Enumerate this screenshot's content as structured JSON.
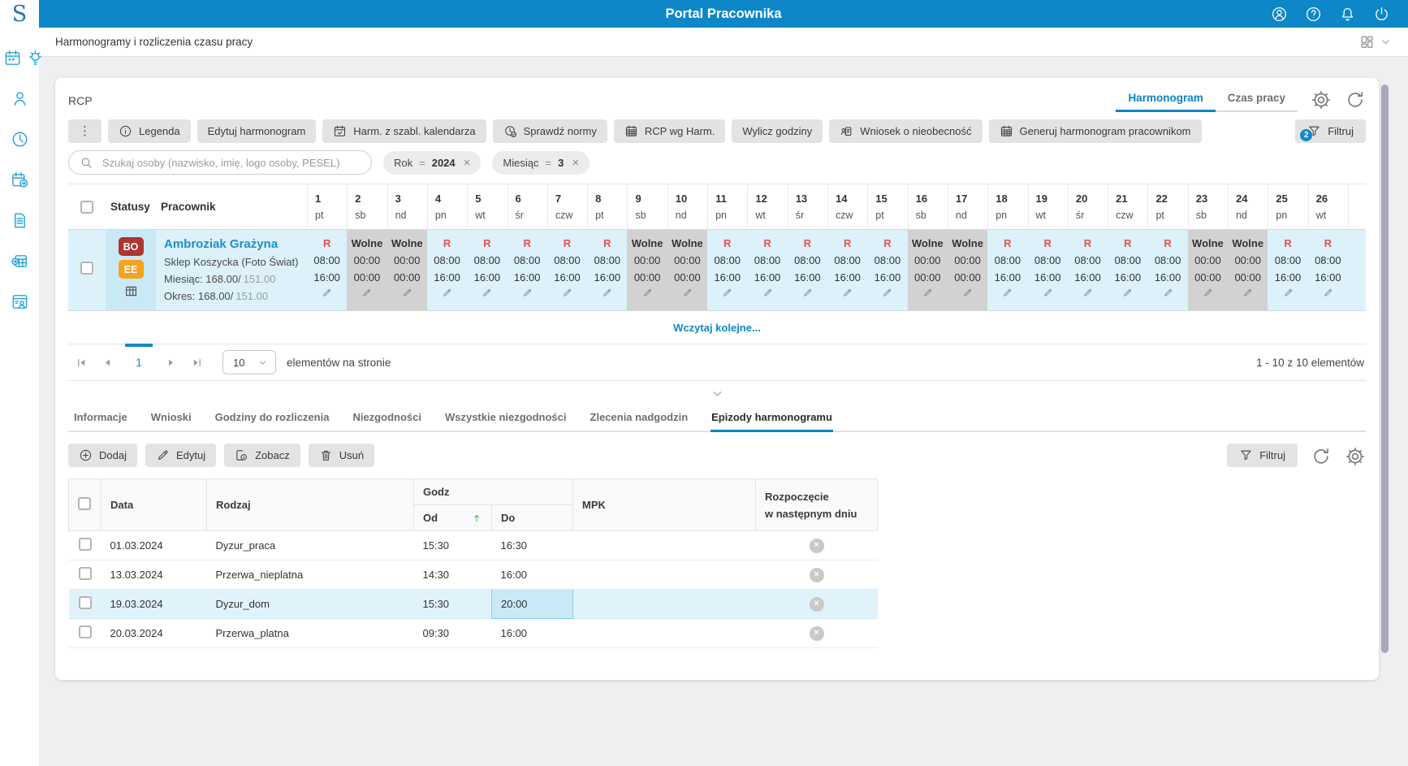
{
  "colors": {
    "topbar": "#0d87c8",
    "accent": "#0d84c6",
    "link": "#1e8fca",
    "badge_blue": "#1488cb"
  },
  "topbar": {
    "title": "Portal Pracownika",
    "icons": [
      "user-icon",
      "help-icon",
      "notifications-icon",
      "power-icon"
    ]
  },
  "sidebar": {
    "logo": "S",
    "top_icons": [
      "calendar-day-icon",
      "lightbulb-icon"
    ],
    "icons": [
      "person-icon",
      "clock-icon",
      "calendar-forward-icon",
      "document-icon",
      "table-export-icon",
      "window-user-icon"
    ]
  },
  "breadcrumb": {
    "title": "Harmonogramy i rozliczenia czasu pracy",
    "icons": [
      "grid-layout-icon",
      "chevron-down-icon"
    ]
  },
  "rcp": {
    "title": "RCP",
    "view_tabs": [
      {
        "label": "Harmonogram",
        "active": true
      },
      {
        "label": "Czas pracy",
        "active": false
      }
    ],
    "toolbar": [
      {
        "name": "more-button",
        "label": "",
        "icon": "kebab-icon"
      },
      {
        "name": "legend-button",
        "label": "Legenda",
        "icon": "info-icon"
      },
      {
        "name": "edit-schedule-button",
        "label": "Edytuj harmonogram",
        "icon": ""
      },
      {
        "name": "schedule-from-template-button",
        "label": "Harm. z szabl. kalendarza",
        "icon": "calendar-check-icon"
      },
      {
        "name": "check-norms-button",
        "label": "Sprawdź normy",
        "icon": "clock-check-icon"
      },
      {
        "name": "rcp-by-schedule-button",
        "label": "RCP wg Harm.",
        "icon": "calendar-grid-icon"
      },
      {
        "name": "calculate-hours-button",
        "label": "Wylicz godziny",
        "icon": ""
      },
      {
        "name": "absence-request-button",
        "label": "Wniosek o nieobecność",
        "icon": "person-document-icon"
      },
      {
        "name": "generate-schedule-button",
        "label": "Generuj harmonogram pracownikom",
        "icon": "calendar-grid-icon"
      }
    ],
    "filter_button": {
      "label": "Filtruj",
      "badge": "2"
    },
    "search_placeholder": "Szukaj osoby (nazwisko, imię, logo osoby, PESEL)",
    "filter_chips": [
      {
        "field": "Rok",
        "operator": "=",
        "value": "2024"
      },
      {
        "field": "Miesiąc",
        "operator": "=",
        "value": "3"
      }
    ],
    "table": {
      "col_statusy": "Statusy",
      "col_pracownik": "Pracownik",
      "days": [
        {
          "num": "1",
          "dow": "pt",
          "type": "work"
        },
        {
          "num": "2",
          "dow": "sb",
          "type": "free"
        },
        {
          "num": "3",
          "dow": "nd",
          "type": "free"
        },
        {
          "num": "4",
          "dow": "pn",
          "type": "work"
        },
        {
          "num": "5",
          "dow": "wt",
          "type": "work"
        },
        {
          "num": "6",
          "dow": "śr",
          "type": "work"
        },
        {
          "num": "7",
          "dow": "czw",
          "type": "work"
        },
        {
          "num": "8",
          "dow": "pt",
          "type": "work"
        },
        {
          "num": "9",
          "dow": "sb",
          "type": "free"
        },
        {
          "num": "10",
          "dow": "nd",
          "type": "free"
        },
        {
          "num": "11",
          "dow": "pn",
          "type": "work"
        },
        {
          "num": "12",
          "dow": "wt",
          "type": "work"
        },
        {
          "num": "13",
          "dow": "śr",
          "type": "work"
        },
        {
          "num": "14",
          "dow": "czw",
          "type": "work"
        },
        {
          "num": "15",
          "dow": "pt",
          "type": "work"
        },
        {
          "num": "16",
          "dow": "sb",
          "type": "free"
        },
        {
          "num": "17",
          "dow": "nd",
          "type": "free"
        },
        {
          "num": "18",
          "dow": "pn",
          "type": "work"
        },
        {
          "num": "19",
          "dow": "wt",
          "type": "work"
        },
        {
          "num": "20",
          "dow": "śr",
          "type": "work"
        },
        {
          "num": "21",
          "dow": "czw",
          "type": "work"
        },
        {
          "num": "22",
          "dow": "pt",
          "type": "work"
        },
        {
          "num": "23",
          "dow": "sb",
          "type": "free"
        },
        {
          "num": "24",
          "dow": "nd",
          "type": "free"
        },
        {
          "num": "25",
          "dow": "pn",
          "type": "work"
        },
        {
          "num": "26",
          "dow": "wt",
          "type": "work"
        }
      ],
      "work_cell": {
        "status": "R",
        "from": "08:00",
        "to": "16:00"
      },
      "free_cell": {
        "status": "Wolne",
        "from": "00:00",
        "to": "00:00"
      },
      "employee": {
        "badges": [
          {
            "label": "BO",
            "color": "#b0342f"
          },
          {
            "label": "EE",
            "color": "#f6a21e"
          }
        ],
        "status_icon": "schedule-grid-icon",
        "name": "Ambroziak Grażyna",
        "unit": "Sklep Koszycka (Foto Świat)",
        "month": "Miesiąc: 168.00/",
        "month_norm": "151.00",
        "period": "Okres: 168.00/",
        "period_norm": "151.00"
      }
    },
    "load_more": "Wczytaj kolejne...",
    "pagination": {
      "page": "1",
      "page_size": "10",
      "items_label": "elementów na stronie",
      "summary": "1 - 10 z 10 elementów"
    }
  },
  "detail": {
    "tabs": [
      {
        "label": "Informacje",
        "active": false
      },
      {
        "label": "Wnioski",
        "active": false
      },
      {
        "label": "Godziny do rozliczenia",
        "active": false
      },
      {
        "label": "Niezgodności",
        "active": false
      },
      {
        "label": "Wszystkie niezgodności",
        "active": false
      },
      {
        "label": "Zlecenia nadgodzin",
        "active": false
      },
      {
        "label": "Epizody harmonogramu",
        "active": true
      }
    ],
    "actions": [
      {
        "name": "add-button",
        "label": "Dodaj",
        "icon": "plus-circle-icon"
      },
      {
        "name": "edit-button",
        "label": "Edytuj",
        "icon": "pencil-icon"
      },
      {
        "name": "view-button",
        "label": "Zobacz",
        "icon": "preview-icon"
      },
      {
        "name": "delete-button",
        "label": "Usuń",
        "icon": "trash-icon"
      }
    ],
    "filter_button": {
      "label": "Filtruj"
    },
    "table": {
      "headers": {
        "data": "Data",
        "rodzaj": "Rodzaj",
        "godz": "Godz",
        "od": "Od",
        "do": "Do",
        "mpk": "MPK",
        "start_next_day_line1": "Rozpoczęcie",
        "start_next_day_line2": "w następnym dniu"
      },
      "rows": [
        {
          "data": "01.03.2024",
          "rodzaj": "Dyzur_praca",
          "od": "15:30",
          "do": "16:30",
          "mpk": "",
          "start_next_day": false,
          "selected": false
        },
        {
          "data": "13.03.2024",
          "rodzaj": "Przerwa_nieplatna",
          "od": "14:30",
          "do": "16:00",
          "mpk": "",
          "start_next_day": false,
          "selected": false
        },
        {
          "data": "19.03.2024",
          "rodzaj": "Dyzur_dom",
          "od": "15:30",
          "do": "20:00",
          "mpk": "",
          "start_next_day": false,
          "selected": true
        },
        {
          "data": "20.03.2024",
          "rodzaj": "Przerwa_platna",
          "od": "09:30",
          "do": "16:00",
          "mpk": "",
          "start_next_day": false,
          "selected": false
        }
      ]
    }
  }
}
